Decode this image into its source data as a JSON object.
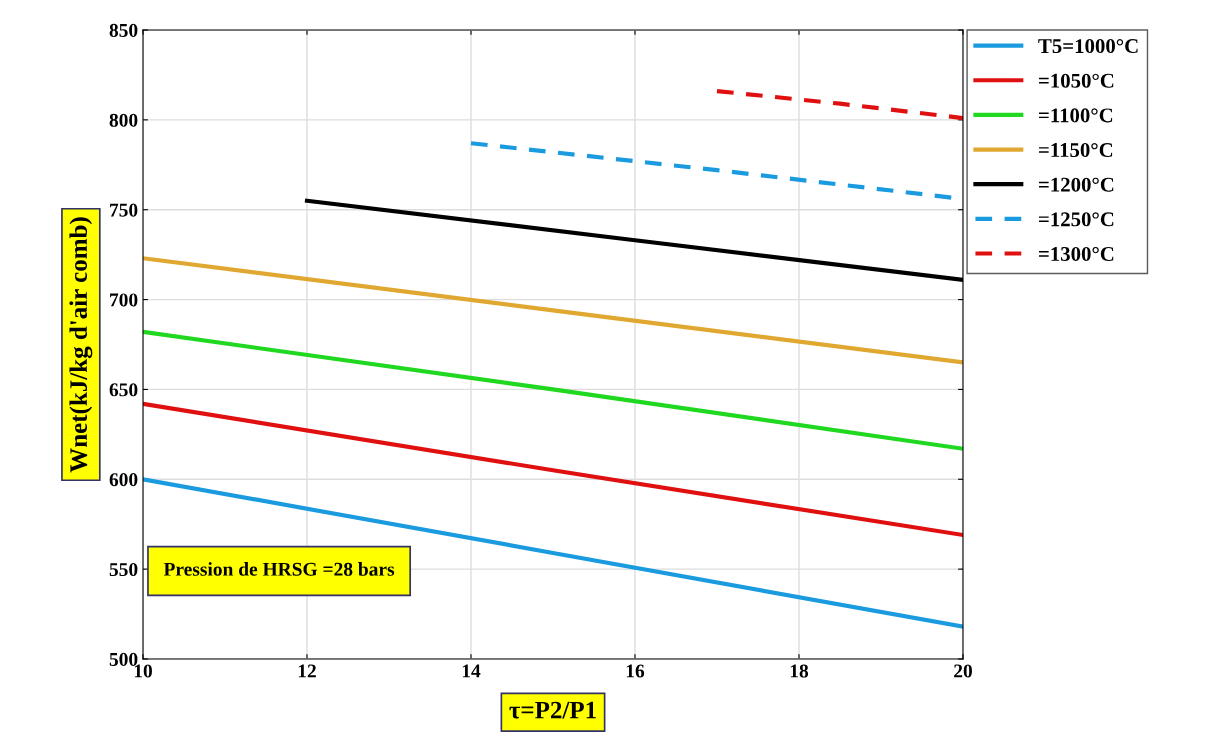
{
  "chart_data": {
    "type": "line",
    "xlabel": "τ=P2/P1",
    "ylabel": "Wnet(kJ/kg d'air comb)",
    "xlim": [
      10,
      20
    ],
    "xticks": [
      10,
      12,
      14,
      16,
      18,
      20
    ],
    "ylim": [
      500,
      850
    ],
    "yticks": [
      500,
      550,
      600,
      650,
      700,
      750,
      800,
      850
    ],
    "grid": true,
    "legend": "top right",
    "marker": "none",
    "annotations": [
      "Pression de HRSG =28 bars"
    ],
    "series": [
      {
        "name": "T5=1000°C",
        "color": "#1a9be0",
        "x": [
          10,
          15,
          20
        ],
        "values": [
          600,
          559,
          518
        ],
        "line_style": "solid"
      },
      {
        "name": "=1050°C",
        "color": "#e01010",
        "x": [
          10,
          15,
          20
        ],
        "values": [
          642,
          605,
          569
        ],
        "line_style": "solid"
      },
      {
        "name": "=1100°C",
        "color": "#20d820",
        "x": [
          10,
          15,
          20
        ],
        "values": [
          682,
          650,
          617
        ],
        "line_style": "solid"
      },
      {
        "name": "=1150°C",
        "color": "#e0a830",
        "x": [
          10,
          15,
          20
        ],
        "values": [
          723,
          694,
          665
        ],
        "line_style": "solid"
      },
      {
        "name": "=1200°C",
        "color": "#000000",
        "x": [
          12,
          16,
          20
        ],
        "values": [
          755,
          733,
          711
        ],
        "line_style": "solid"
      },
      {
        "name": "=1250°C",
        "color": "#1a9be0",
        "x": [
          14,
          17,
          20
        ],
        "values": [
          787,
          772,
          756
        ],
        "line_style": "dashed"
      },
      {
        "name": "=1300°C",
        "color": "#e01010",
        "x": [
          17,
          18.5,
          20
        ],
        "values": [
          816,
          809,
          801
        ],
        "line_style": "dashed"
      }
    ]
  }
}
